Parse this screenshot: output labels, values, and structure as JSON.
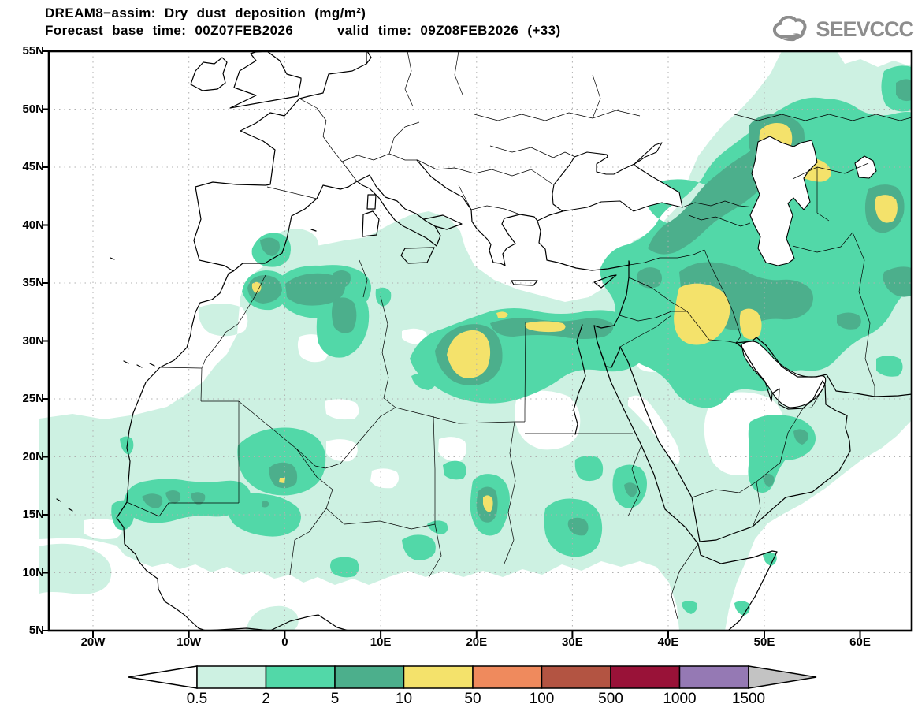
{
  "header": {
    "title_line1": "DREAM8−assim: Dry dust deposition (mg/m²)",
    "title_line2": "Forecast base time: 00Z07FEB2026     valid time: 09Z08FEB2026 (+33)",
    "logo_text": "SEEVCCC",
    "logo_color": "#8d8d8d"
  },
  "map": {
    "lat_tick_labels": [
      "55N",
      "50N",
      "45N",
      "40N",
      "35N",
      "30N",
      "25N",
      "20N",
      "15N",
      "10N",
      "5N"
    ],
    "lon_tick_labels": [
      "20W",
      "10W",
      "0",
      "10E",
      "20E",
      "30E",
      "40E",
      "50E",
      "60E"
    ]
  },
  "colorbar": {
    "tick_labels": [
      "0.5",
      "2",
      "5",
      "10",
      "50",
      "100",
      "500",
      "1000",
      "1500"
    ],
    "segment_colors": [
      "#cdf1e2",
      "#52d8a8",
      "#4caf8c",
      "#f4e26b",
      "#ef8a5d",
      "#b35442",
      "#991238",
      "#9579b4"
    ],
    "below_min_color": "#ffffff",
    "above_max_color": "#c3c3c3"
  },
  "chart_data": {
    "type": "heatmap",
    "title": "DREAM8−assim: Dry dust deposition (mg/m²)",
    "variable": "dry dust deposition",
    "units": "mg/m²",
    "forecast_base_time": "00Z07FEB2026",
    "valid_time": "09Z08FEB2026",
    "forecast_hour": "+33",
    "contour_levels": [
      0.5,
      2,
      5,
      10,
      50,
      100,
      500,
      1000,
      1500
    ],
    "level_colors": [
      "#ffffff",
      "#cdf1e2",
      "#52d8a8",
      "#4caf8c",
      "#f4e26b",
      "#ef8a5d",
      "#b35442",
      "#991238",
      "#9579b4",
      "#c3c3c3"
    ],
    "lat_axis": {
      "ticks": [
        "55N",
        "50N",
        "45N",
        "40N",
        "35N",
        "30N",
        "25N",
        "20N",
        "15N",
        "10N",
        "5N"
      ],
      "range": [
        "5N",
        "55N"
      ]
    },
    "lon_axis": {
      "ticks": [
        "20W",
        "10W",
        "0",
        "10E",
        "20E",
        "30E",
        "40E",
        "50E",
        "60E"
      ],
      "range": [
        "25W",
        "65E"
      ]
    },
    "grid": "dotted",
    "legend_position": "bottom",
    "max_band_observed": "10–50 mg/m²",
    "high_deposition_areas_10_to_50": [
      "Morocco Atlas",
      "central Libya",
      "Egyptian Mediterranean coast",
      "Iraq / Mesopotamia",
      "Zagros foothills",
      "north of Caspian Sea",
      "east of Caspian Sea",
      "Chad (Ennedi)",
      "Sahel near 0E 18N"
    ]
  }
}
